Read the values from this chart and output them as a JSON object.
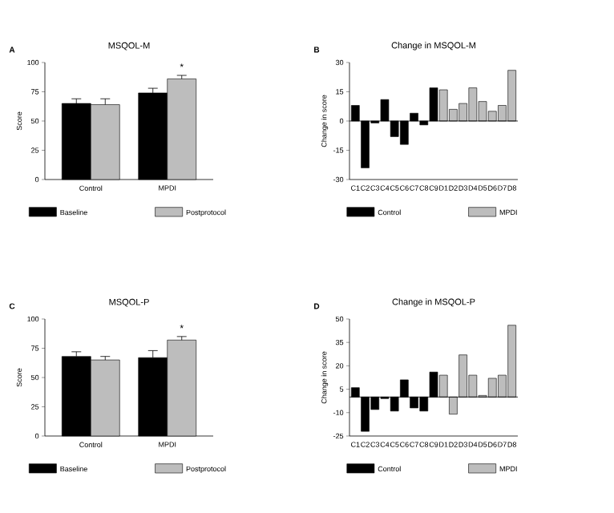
{
  "chart_data": [
    {
      "type": "bar",
      "title": "MSQOL-M",
      "annotations": [
        "A",
        "*"
      ],
      "categories": [
        "Control",
        "MPDI"
      ],
      "series": [
        {
          "name": "Baseline",
          "color": "#000000",
          "values": [
            65,
            74
          ],
          "errors": [
            4,
            4
          ]
        },
        {
          "name": "Postprotocol",
          "color": "#bdbdbd",
          "values": [
            64,
            86
          ],
          "errors": [
            5,
            3
          ]
        }
      ],
      "ylabel": "Score",
      "ylim": [
        0,
        100
      ],
      "yticks": [
        0,
        25,
        50,
        75,
        100
      ],
      "legend": "bottom"
    },
    {
      "type": "bar",
      "title": "Change in MSQOL-M",
      "annotations": [
        "B"
      ],
      "categories": [
        "C1",
        "C2",
        "C3",
        "C4",
        "C5",
        "C6",
        "C7",
        "C8",
        "C9",
        "D1",
        "D2",
        "D3",
        "D4",
        "D5",
        "D6",
        "D7",
        "D8"
      ],
      "series": [
        {
          "name": "Control",
          "color": "#000000",
          "values": [
            8,
            -24,
            -1,
            11,
            -8,
            -12,
            4,
            -2,
            17,
            null,
            null,
            null,
            null,
            null,
            null,
            null,
            null
          ]
        },
        {
          "name": "MPDI",
          "color": "#bdbdbd",
          "values": [
            null,
            null,
            null,
            null,
            null,
            null,
            null,
            null,
            null,
            16,
            6,
            9,
            17,
            10,
            5,
            8,
            26
          ]
        }
      ],
      "ylabel": "Change in score",
      "ylim": [
        -30,
        30
      ],
      "yticks": [
        -30,
        -15,
        0,
        15,
        30
      ],
      "ref_lines": [
        {
          "axis": "y",
          "value": 0
        }
      ],
      "legend": "bottom"
    },
    {
      "type": "bar",
      "title": "MSQOL-P",
      "annotations": [
        "C",
        "*"
      ],
      "categories": [
        "Control",
        "MPDI"
      ],
      "series": [
        {
          "name": "Baseline",
          "color": "#000000",
          "values": [
            68,
            67
          ],
          "errors": [
            4,
            6
          ]
        },
        {
          "name": "Postprotocol",
          "color": "#bdbdbd",
          "values": [
            65,
            82
          ],
          "errors": [
            3,
            3
          ]
        }
      ],
      "ylabel": "Score",
      "ylim": [
        0,
        100
      ],
      "yticks": [
        0,
        25,
        50,
        75,
        100
      ],
      "legend": "bottom"
    },
    {
      "type": "bar",
      "title": "Change in MSQOL-P",
      "annotations": [
        "D"
      ],
      "categories": [
        "C1",
        "C2",
        "C3",
        "C4",
        "C5",
        "C6",
        "C7",
        "C8",
        "C9",
        "D1",
        "D2",
        "D3",
        "D4",
        "D5",
        "D6",
        "D7",
        "D8"
      ],
      "series": [
        {
          "name": "Control",
          "color": "#000000",
          "values": [
            6,
            -22,
            -8,
            -1,
            -9,
            11,
            -7,
            -9,
            16,
            null,
            null,
            null,
            null,
            null,
            null,
            null,
            null
          ]
        },
        {
          "name": "MPDI",
          "color": "#bdbdbd",
          "values": [
            null,
            null,
            null,
            null,
            null,
            null,
            null,
            null,
            null,
            14,
            -11,
            27,
            14,
            1,
            12,
            14,
            46
          ]
        }
      ],
      "ylabel": "Change in score",
      "ylim": [
        -25,
        50
      ],
      "yticks": [
        -25,
        -10,
        5,
        20,
        35,
        50
      ],
      "ref_lines": [
        {
          "axis": "y",
          "value": 0
        }
      ],
      "legend": "bottom"
    }
  ]
}
